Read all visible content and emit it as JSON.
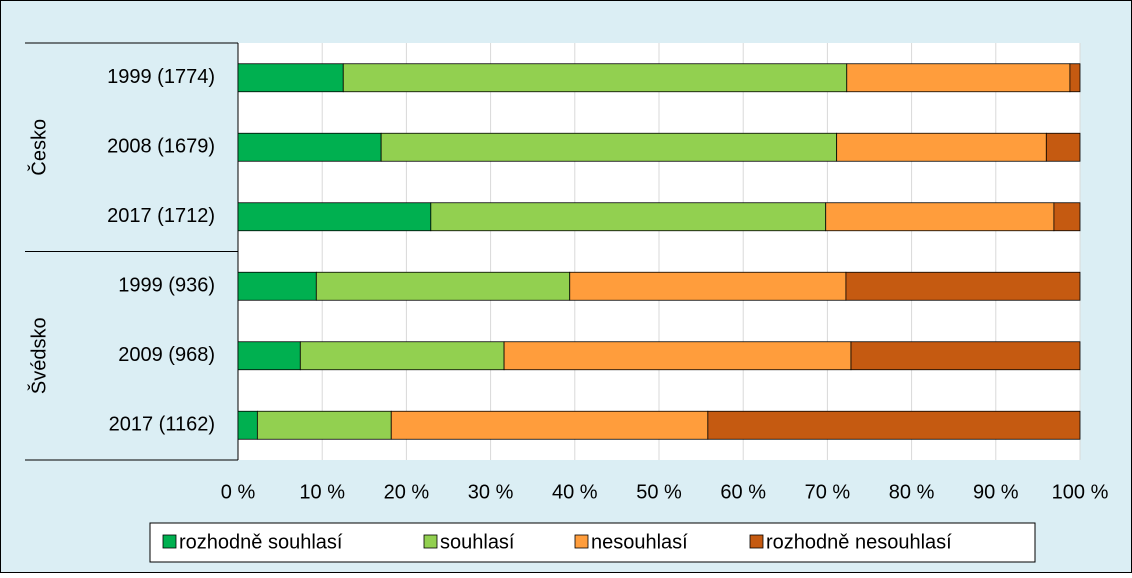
{
  "chart_data": {
    "type": "stacked-bar-horizontal",
    "groups": [
      {
        "name": "Česko",
        "categories": [
          "1999 (1774)",
          "2008 (1679)",
          "2017 (1712)"
        ]
      },
      {
        "name": "Švédsko",
        "categories": [
          "1999 (936)",
          "2009 (968)",
          "2017 (1162)"
        ]
      }
    ],
    "series": [
      {
        "name": "rozhodně souhlasí",
        "color": "#00b050",
        "values": [
          12.5,
          17.0,
          22.9,
          9.3,
          7.4,
          2.3
        ]
      },
      {
        "name": "souhlasí",
        "color": "#92d050",
        "values": [
          59.8,
          54.1,
          46.9,
          30.1,
          24.2,
          15.9
        ]
      },
      {
        "name": "nesouhlasí",
        "color": "#ff9d3c",
        "values": [
          26.5,
          24.9,
          27.1,
          32.8,
          41.2,
          37.6
        ]
      },
      {
        "name": "rozhodně nesouhlasí",
        "color": "#c55a11",
        "values": [
          1.2,
          4.0,
          3.1,
          27.8,
          27.2,
          44.2
        ]
      }
    ],
    "xlim": [
      0,
      100
    ],
    "xticks": [
      {
        "value": 0,
        "label": "0 %"
      },
      {
        "value": 10,
        "label": "10 %"
      },
      {
        "value": 20,
        "label": "20 %"
      },
      {
        "value": 30,
        "label": "30 %"
      },
      {
        "value": 40,
        "label": "40 %"
      },
      {
        "value": 50,
        "label": "50 %"
      },
      {
        "value": 60,
        "label": "60 %"
      },
      {
        "value": 70,
        "label": "70 %"
      },
      {
        "value": 80,
        "label": "80 %"
      },
      {
        "value": 90,
        "label": "90 %"
      },
      {
        "value": 100,
        "label": "100 %"
      }
    ],
    "grid": true,
    "legend": "bottom"
  }
}
